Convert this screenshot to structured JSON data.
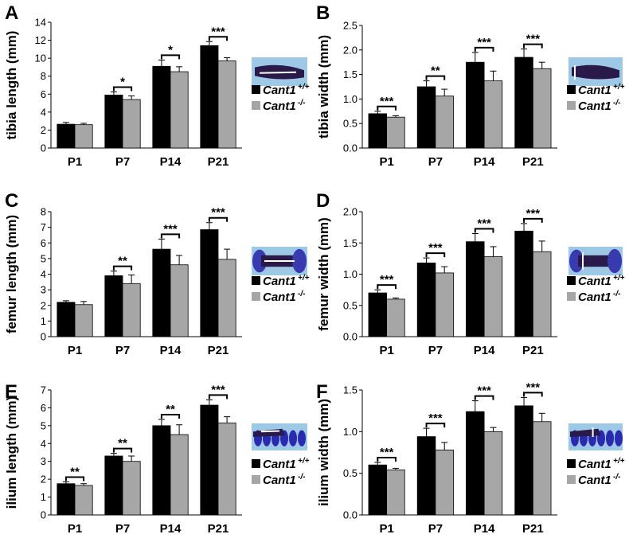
{
  "colors": {
    "wildtype": "#000000",
    "knockout": "#a6a6a6",
    "photo_bg": "#9ec9e6",
    "bone": "#2a1a4a"
  },
  "legend": {
    "wt_label": "Cant1",
    "wt_sup": "+/+",
    "ko_label": "Cant1",
    "ko_sup": "-/-"
  },
  "chart_data": [
    {
      "panel": "A",
      "type": "bar",
      "ylabel": "tibia length (mm)",
      "categories": [
        "P1",
        "P7",
        "P14",
        "P21"
      ],
      "ylim": [
        0,
        14
      ],
      "yticks": [
        0,
        2,
        4,
        6,
        8,
        10,
        12,
        14
      ],
      "tick_decimals": 0,
      "series": [
        {
          "name": "Cant1+/+",
          "values": [
            2.65,
            5.9,
            9.1,
            11.4
          ],
          "errors": [
            0.2,
            0.35,
            0.7,
            0.45
          ]
        },
        {
          "name": "Cant1-/-",
          "values": [
            2.6,
            5.4,
            8.5,
            9.7
          ],
          "errors": [
            0.15,
            0.4,
            0.55,
            0.35
          ]
        }
      ],
      "significance": [
        "",
        "*",
        "*",
        "***"
      ],
      "photo_icon": "tibia-photo-icon"
    },
    {
      "panel": "B",
      "type": "bar",
      "ylabel": "tibia width (mm)",
      "categories": [
        "P1",
        "P7",
        "P14",
        "P21"
      ],
      "ylim": [
        0,
        2.5
      ],
      "yticks": [
        0,
        0.5,
        1.0,
        1.5,
        2.0,
        2.5
      ],
      "tick_decimals": 1,
      "series": [
        {
          "name": "Cant1+/+",
          "values": [
            0.7,
            1.25,
            1.75,
            1.85
          ],
          "errors": [
            0.05,
            0.12,
            0.2,
            0.17
          ]
        },
        {
          "name": "Cant1-/-",
          "values": [
            0.63,
            1.06,
            1.37,
            1.62
          ],
          "errors": [
            0.03,
            0.14,
            0.2,
            0.13
          ]
        }
      ],
      "significance": [
        "***",
        "**",
        "***",
        "***"
      ],
      "photo_icon": "tibia-width-photo-icon"
    },
    {
      "panel": "C",
      "type": "bar",
      "ylabel": "femur length (mm)",
      "categories": [
        "P1",
        "P7",
        "P14",
        "P21"
      ],
      "ylim": [
        0,
        8
      ],
      "yticks": [
        0,
        1,
        2,
        3,
        4,
        5,
        6,
        7,
        8
      ],
      "tick_decimals": 0,
      "series": [
        {
          "name": "Cant1+/+",
          "values": [
            2.2,
            3.9,
            5.6,
            6.85
          ],
          "errors": [
            0.1,
            0.3,
            0.65,
            0.45
          ]
        },
        {
          "name": "Cant1-/-",
          "values": [
            2.05,
            3.4,
            4.6,
            4.95
          ],
          "errors": [
            0.2,
            0.55,
            0.6,
            0.65
          ]
        }
      ],
      "significance": [
        "",
        "**",
        "***",
        "***"
      ],
      "photo_icon": "femur-photo-icon"
    },
    {
      "panel": "D",
      "type": "bar",
      "ylabel": "femur width (mm)",
      "categories": [
        "P1",
        "P7",
        "P14",
        "P21"
      ],
      "ylim": [
        0,
        2.0
      ],
      "yticks": [
        0,
        0.5,
        1.0,
        1.5,
        2.0
      ],
      "tick_decimals": 1,
      "series": [
        {
          "name": "Cant1+/+",
          "values": [
            0.7,
            1.18,
            1.52,
            1.69
          ],
          "errors": [
            0.05,
            0.08,
            0.13,
            0.12
          ]
        },
        {
          "name": "Cant1-/-",
          "values": [
            0.6,
            1.02,
            1.28,
            1.36
          ],
          "errors": [
            0.02,
            0.1,
            0.16,
            0.17
          ]
        }
      ],
      "significance": [
        "***",
        "***",
        "***",
        "***"
      ],
      "photo_icon": "femur-width-photo-icon"
    },
    {
      "panel": "E",
      "type": "bar",
      "ylabel": "ilium length (mm)",
      "categories": [
        "P1",
        "P7",
        "P14",
        "P21"
      ],
      "ylim": [
        0,
        7
      ],
      "yticks": [
        0,
        1,
        2,
        3,
        4,
        5,
        6,
        7
      ],
      "tick_decimals": 0,
      "series": [
        {
          "name": "Cant1+/+",
          "values": [
            1.75,
            3.3,
            5.0,
            6.15
          ],
          "errors": [
            0.1,
            0.15,
            0.35,
            0.3
          ]
        },
        {
          "name": "Cant1-/-",
          "values": [
            1.65,
            3.0,
            4.5,
            5.15
          ],
          "errors": [
            0.1,
            0.3,
            0.55,
            0.35
          ]
        }
      ],
      "significance": [
        "**",
        "**",
        "**",
        "***"
      ],
      "photo_icon": "ilium-photo-icon"
    },
    {
      "panel": "F",
      "type": "bar",
      "ylabel": "ilium width (mm)",
      "categories": [
        "P1",
        "P7",
        "P14",
        "P21"
      ],
      "ylim": [
        0,
        1.5
      ],
      "yticks": [
        0,
        0.5,
        1.0,
        1.5
      ],
      "tick_decimals": 1,
      "series": [
        {
          "name": "Cant1+/+",
          "values": [
            0.6,
            0.94,
            1.24,
            1.31
          ],
          "errors": [
            0.03,
            0.1,
            0.13,
            0.1
          ]
        },
        {
          "name": "Cant1-/-",
          "values": [
            0.54,
            0.78,
            1.0,
            1.12
          ],
          "errors": [
            0.02,
            0.09,
            0.05,
            0.1
          ]
        }
      ],
      "significance": [
        "***",
        "***",
        "***",
        "***"
      ],
      "photo_icon": "ilium-width-photo-icon"
    }
  ]
}
